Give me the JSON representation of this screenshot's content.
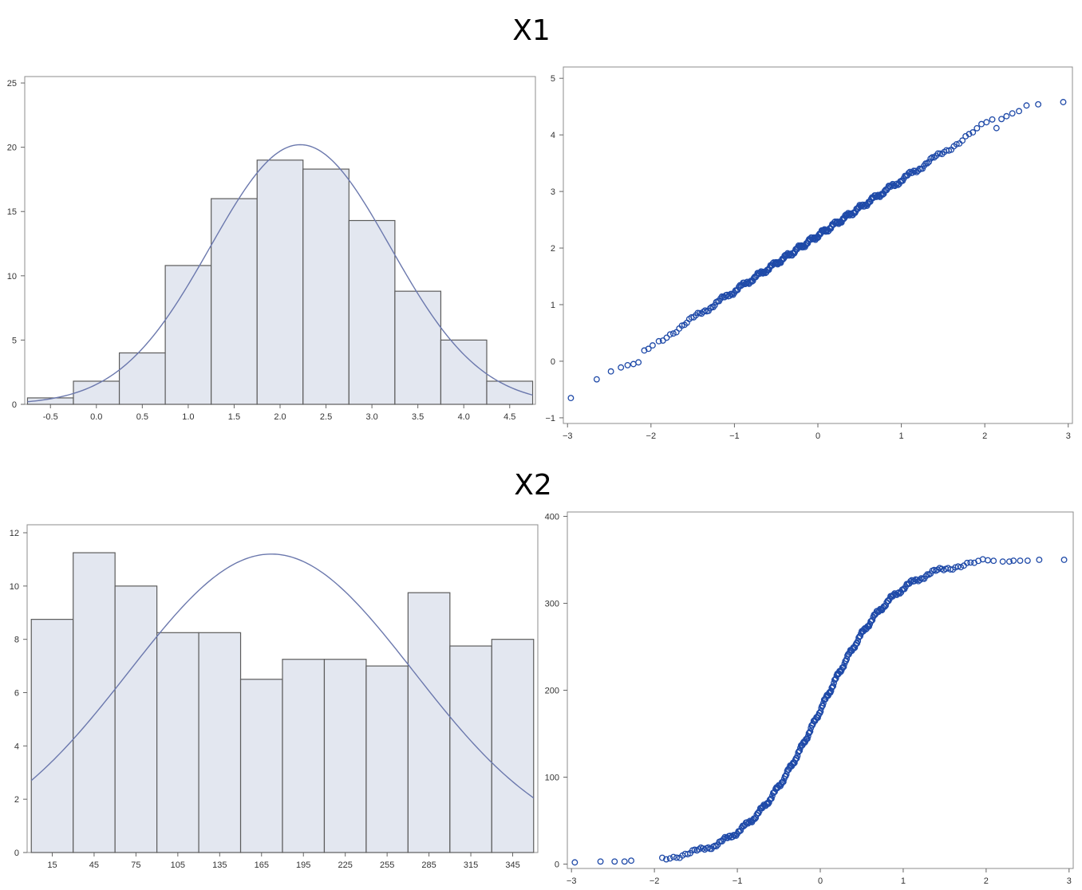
{
  "titles": {
    "x1": "X1",
    "x2": "X2"
  },
  "colors": {
    "bar_fill": "#e3e7f0",
    "bar_stroke": "#5c5c5c",
    "curve": "#6b78ad",
    "point": "#1f4aa8",
    "frame": "#8c8c8c"
  },
  "chart_data": [
    {
      "id": "x1-hist",
      "type": "bar",
      "title": "X1",
      "bin_edges": [
        -0.75,
        -0.25,
        0.25,
        0.75,
        1.25,
        1.75,
        2.25,
        2.75,
        3.25,
        3.75,
        4.25,
        4.75
      ],
      "values": [
        0.5,
        1.8,
        4.0,
        10.8,
        16.0,
        19.0,
        18.3,
        14.3,
        8.8,
        5.0,
        1.8
      ],
      "xlim": [
        -0.78,
        4.78
      ],
      "ylim": [
        0,
        25.5
      ],
      "x_ticks": [
        -0.5,
        0.0,
        0.5,
        1.0,
        1.5,
        2.0,
        2.5,
        3.0,
        3.5,
        4.0,
        4.5
      ],
      "x_tick_labels": [
        "-0.5",
        "0.0",
        "0.5",
        "1.0",
        "1.5",
        "2.0",
        "2.5",
        "3.0",
        "3.5",
        "4.0",
        "4.5"
      ],
      "y_ticks": [
        0,
        5,
        10,
        15,
        20,
        25
      ],
      "normal_curve": {
        "mean": 2.22,
        "sd": 0.98,
        "peak": 20.2
      }
    },
    {
      "id": "x1-qq",
      "type": "scatter",
      "xlim": [
        -3.05,
        3.05
      ],
      "ylim": [
        -1.1,
        5.2
      ],
      "x_ticks": [
        -3,
        -2,
        -1,
        0,
        1,
        2,
        3
      ],
      "x_tick_labels": [
        "−3",
        "−2",
        "−1",
        "0",
        "1",
        "2",
        "3"
      ],
      "y_ticks": [
        -1,
        0,
        1,
        2,
        3,
        4,
        5
      ],
      "y_tick_labels": [
        "−1",
        "0",
        "1",
        "2",
        "3",
        "4",
        "5"
      ],
      "fit": {
        "intercept": 2.22,
        "slope": 0.98
      },
      "n": 300,
      "tail_points": [
        [
          -2.96,
          -0.65
        ],
        [
          -2.65,
          -0.32
        ],
        [
          -2.48,
          -0.18
        ],
        [
          -2.36,
          -0.11
        ],
        [
          -2.28,
          -0.07
        ],
        [
          -2.21,
          -0.05
        ],
        [
          -2.15,
          -0.02
        ],
        [
          -2.08,
          0.19
        ],
        [
          -2.03,
          0.22
        ],
        [
          -1.98,
          0.28
        ],
        [
          2.14,
          4.12
        ],
        [
          2.2,
          4.28
        ],
        [
          2.26,
          4.33
        ],
        [
          2.33,
          4.38
        ],
        [
          2.41,
          4.42
        ],
        [
          2.5,
          4.52
        ],
        [
          2.64,
          4.54
        ],
        [
          2.94,
          4.58
        ]
      ]
    },
    {
      "id": "x2-hist",
      "type": "bar",
      "title": "X2",
      "bin_edges": [
        0,
        30,
        60,
        90,
        120,
        150,
        180,
        210,
        240,
        270,
        300,
        330,
        360
      ],
      "values": [
        8.75,
        11.25,
        10.0,
        8.25,
        8.25,
        6.5,
        7.25,
        7.25,
        7.0,
        9.75,
        7.75,
        8.0
      ],
      "xlim": [
        -3,
        363
      ],
      "ylim": [
        0,
        12.3
      ],
      "x_ticks": [
        15,
        45,
        75,
        105,
        135,
        165,
        195,
        225,
        255,
        285,
        315,
        345
      ],
      "x_tick_labels": [
        "15",
        "45",
        "75",
        "105",
        "135",
        "165",
        "195",
        "225",
        "255",
        "285",
        "315",
        "345"
      ],
      "y_ticks": [
        0,
        2,
        4,
        6,
        8,
        10,
        12
      ],
      "normal_curve": {
        "mean": 172,
        "sd": 102,
        "peak": 11.2
      }
    },
    {
      "id": "x2-qq",
      "type": "scatter",
      "xlim": [
        -3.05,
        3.05
      ],
      "ylim": [
        -5,
        405
      ],
      "x_ticks": [
        -3,
        -2,
        -1,
        0,
        1,
        2,
        3
      ],
      "x_tick_labels": [
        "−3",
        "−2",
        "−1",
        "0",
        "1",
        "2",
        "3"
      ],
      "y_ticks": [
        0,
        100,
        200,
        300,
        400
      ],
      "y_tick_labels": [
        "0",
        "100",
        "200",
        "300",
        "400"
      ],
      "s_curve": {
        "low": 2,
        "high": 352,
        "slope": 2.2,
        "center": 0
      },
      "n": 300,
      "tail_points": [
        [
          -2.96,
          2
        ],
        [
          -2.65,
          3
        ],
        [
          -2.48,
          3
        ],
        [
          -2.36,
          3
        ],
        [
          -2.28,
          4
        ],
        [
          2.2,
          348
        ],
        [
          2.28,
          348
        ],
        [
          2.33,
          349
        ],
        [
          2.41,
          349
        ],
        [
          2.5,
          349
        ],
        [
          2.64,
          350
        ],
        [
          2.94,
          350
        ]
      ]
    }
  ]
}
